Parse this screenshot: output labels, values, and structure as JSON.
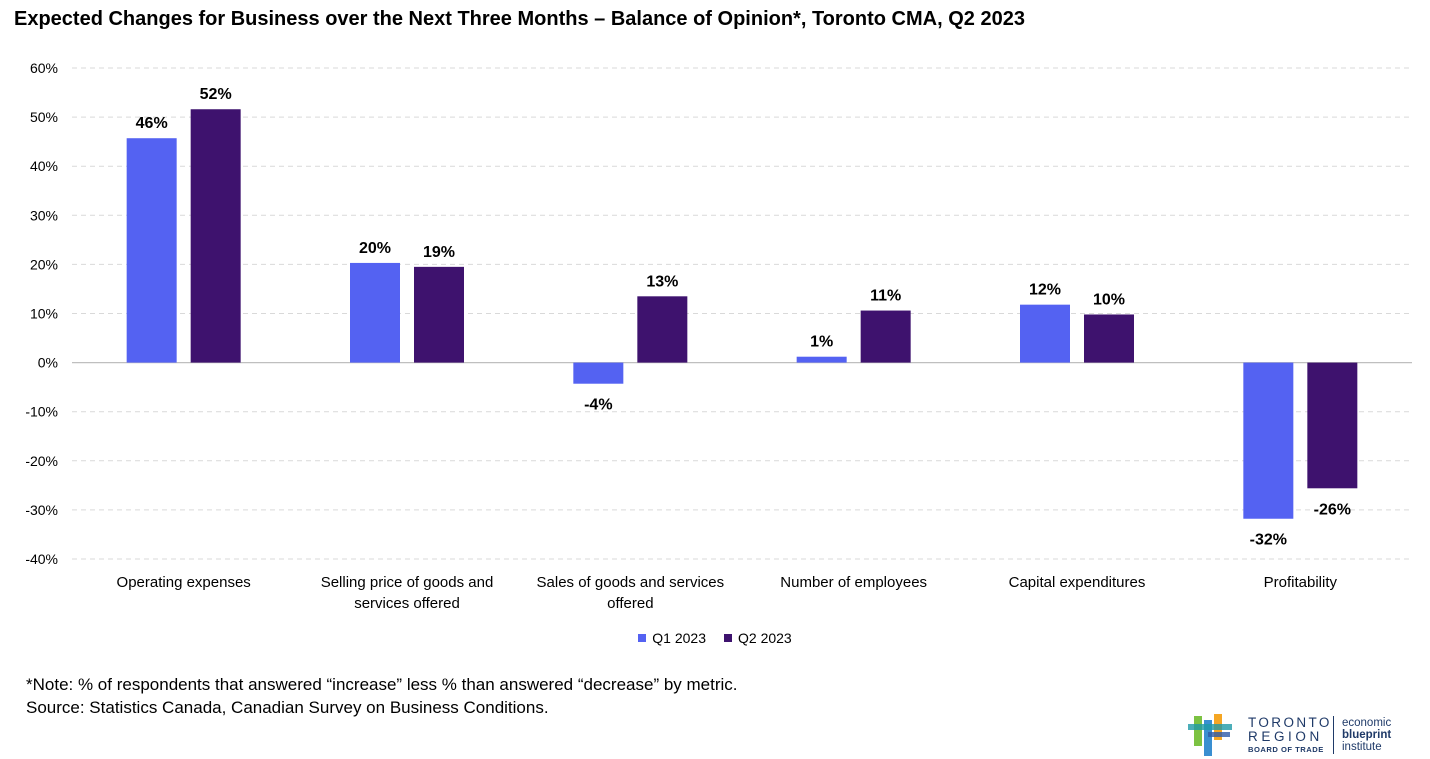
{
  "chart_data": {
    "type": "bar",
    "title": "Expected Changes for Business over the Next Three Months – Balance of Opinion*, Toronto CMA, Q2 2023",
    "categories": [
      [
        "Operating expenses"
      ],
      [
        "Selling price of goods and",
        "services offered"
      ],
      [
        "Sales of goods and services",
        "offered"
      ],
      [
        "Number of employees"
      ],
      [
        "Capital expenditures"
      ],
      [
        "Profitability"
      ]
    ],
    "series": [
      {
        "name": "Q1 2023",
        "color": "#5462F2",
        "values": [
          45.7,
          20.3,
          -4.3,
          1.2,
          11.8,
          -31.8
        ],
        "labels": [
          "46%",
          "20%",
          "-4%",
          "1%",
          "12%",
          "-32%"
        ]
      },
      {
        "name": "Q2 2023",
        "color": "#3E126E",
        "values": [
          51.6,
          19.5,
          13.5,
          10.6,
          9.8,
          -25.6
        ],
        "labels": [
          "52%",
          "19%",
          "13%",
          "11%",
          "10%",
          "-26%"
        ]
      }
    ],
    "ylim": [
      -40,
      60
    ],
    "yticks": [
      60,
      50,
      40,
      30,
      20,
      10,
      0,
      -10,
      -20,
      -30,
      -40
    ],
    "ytick_labels": [
      "60%",
      "50%",
      "40%",
      "30%",
      "20%",
      "10%",
      "0%",
      "-10%",
      "-20%",
      "-30%",
      "-40%"
    ],
    "grid": true,
    "legend_position": "bottom"
  },
  "notes": {
    "line1": "*Note: % of respondents that answered “increase” less % than answered “decrease” by metric.",
    "line2": "Source: Statistics Canada, Canadian Survey on Business Conditions."
  },
  "logo": {
    "line1": "TORONTO",
    "line2": "REGION",
    "line3": "BOARD OF TRADE",
    "ebi1": "economic",
    "ebi2": "blueprint",
    "ebi3": "institute"
  }
}
